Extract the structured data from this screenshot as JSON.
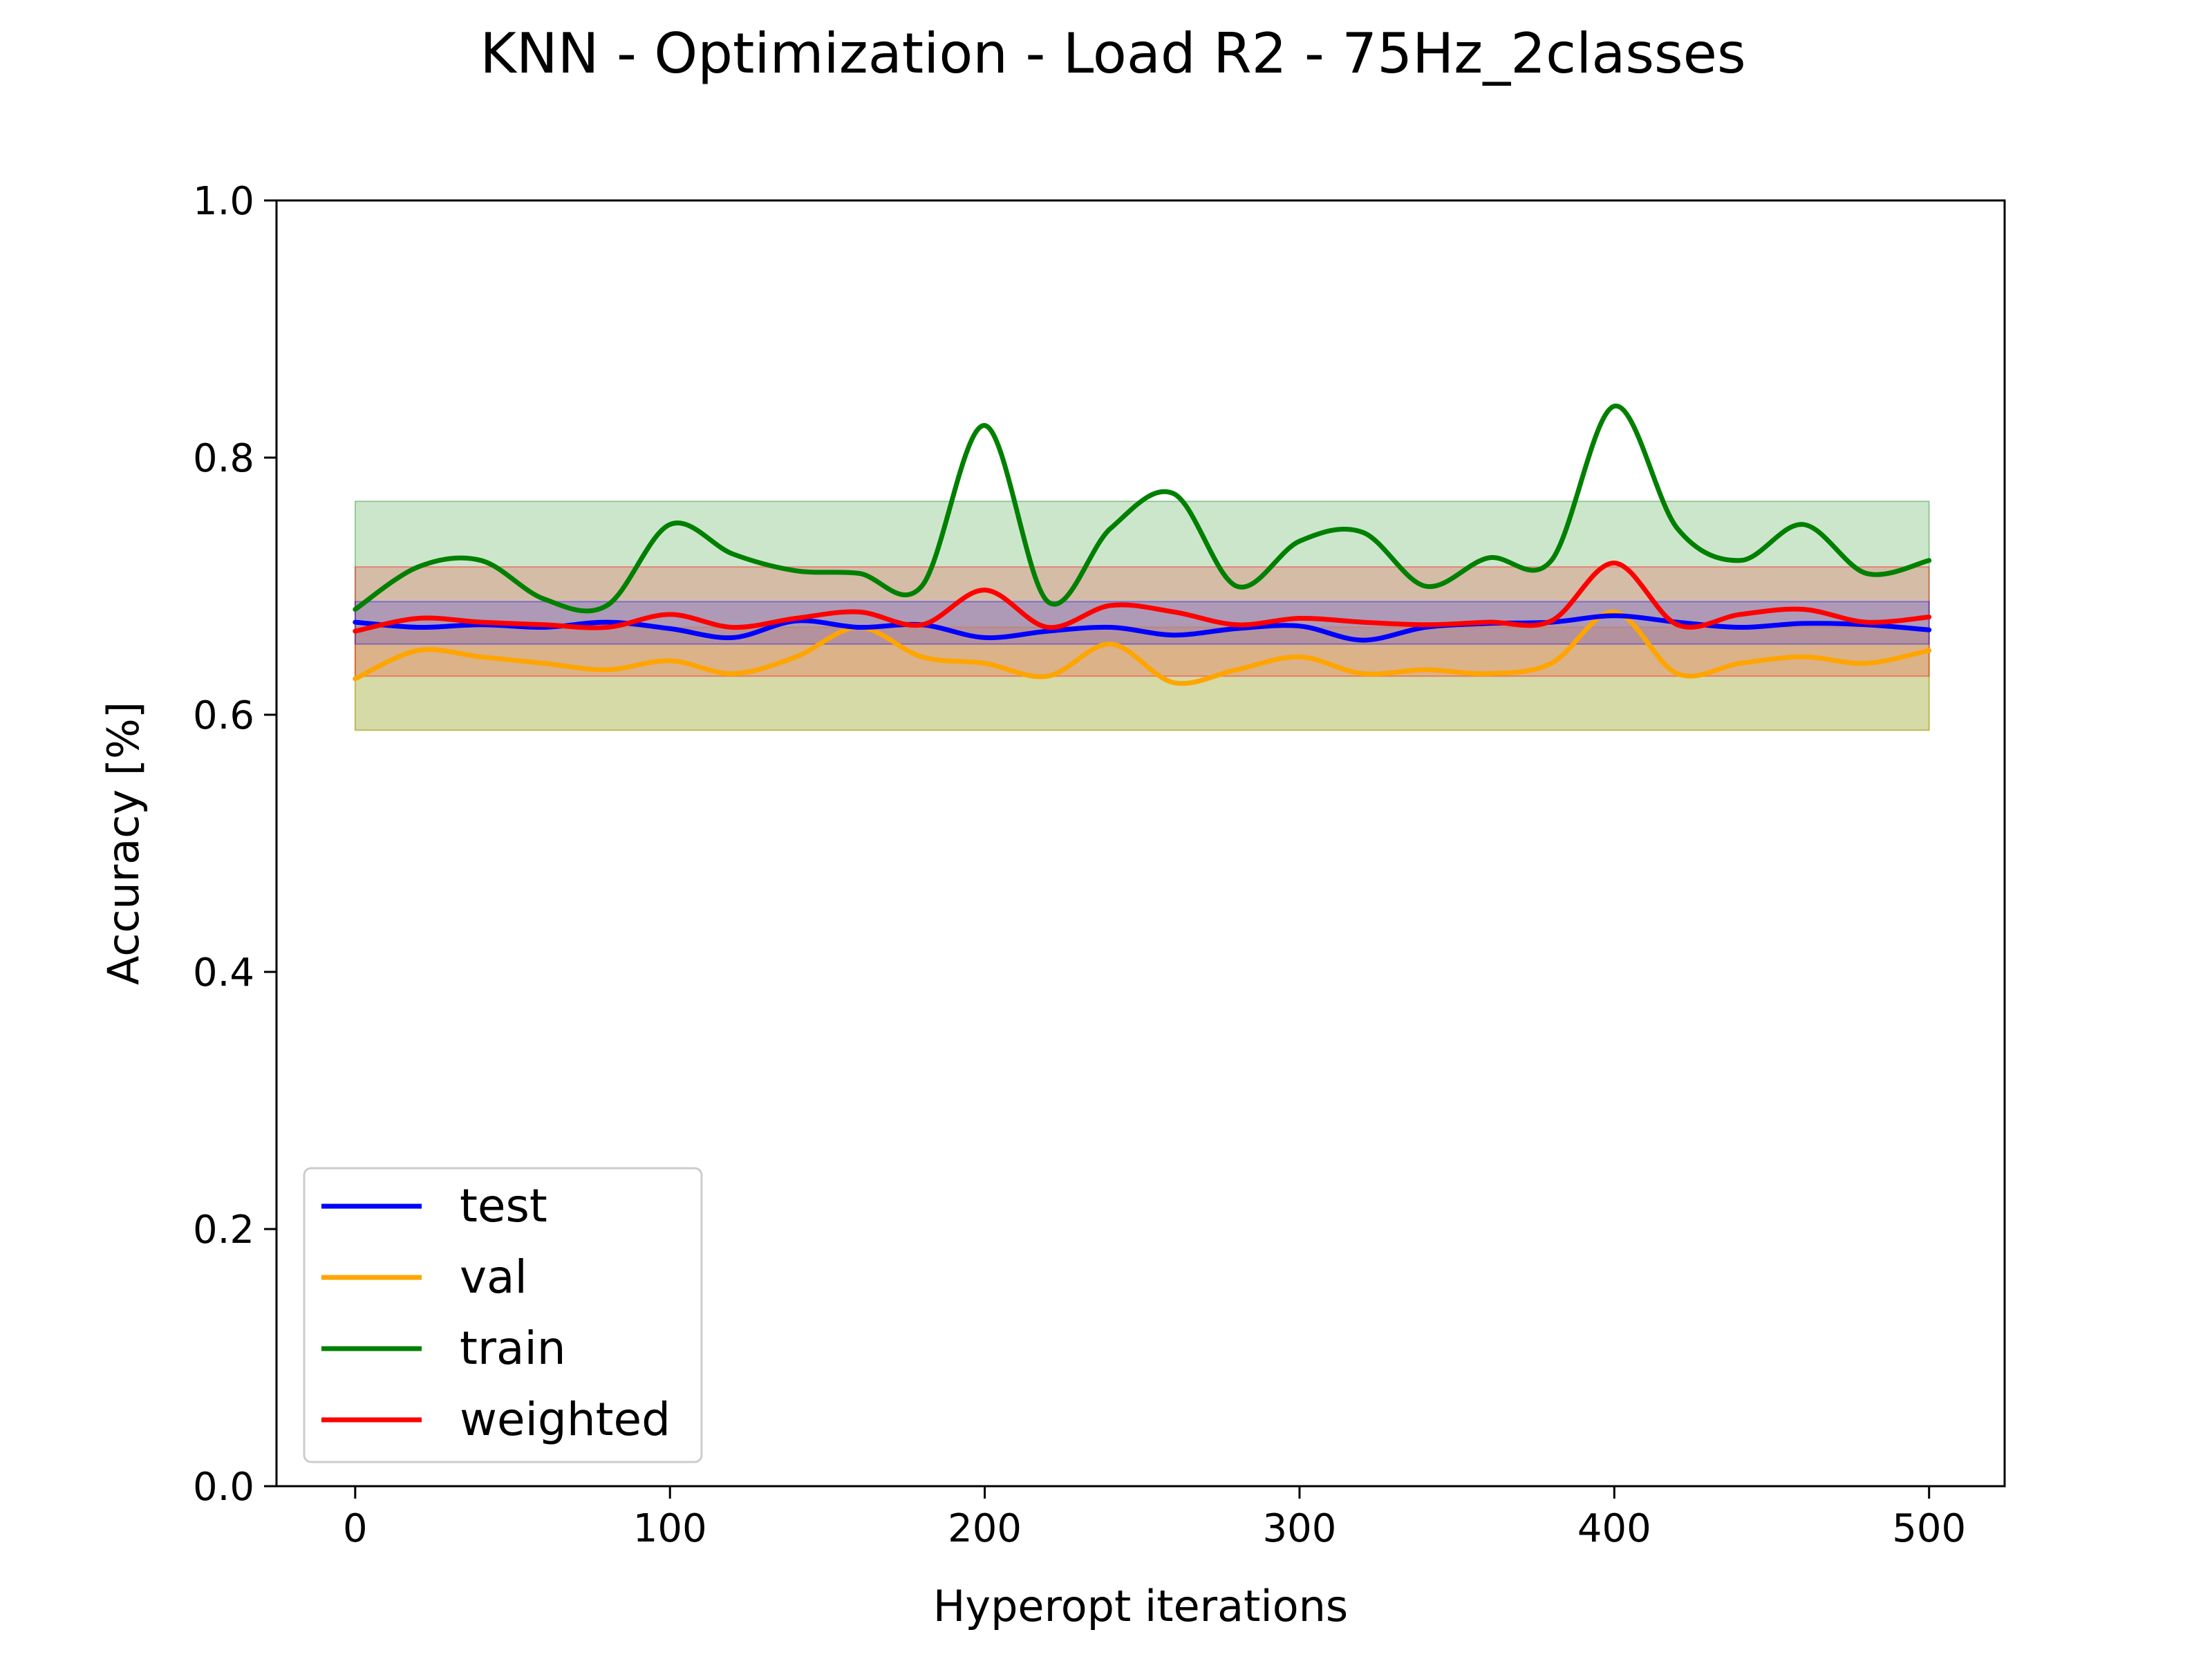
{
  "chart_data": {
    "type": "line",
    "title": "KNN - Optimization - Load R2 - 75Hz_2classes",
    "xlabel": "Hyperopt iterations",
    "ylabel": "Accuracy [%]",
    "xlim": [
      -25,
      524
    ],
    "ylim": [
      0.0,
      1.0
    ],
    "xticks": [
      "0",
      "100",
      "200",
      "300",
      "400",
      "500"
    ],
    "yticks": [
      "0.0",
      "0.2",
      "0.4",
      "0.6",
      "0.8",
      "1.0"
    ],
    "grid": false,
    "legend_position": "lower-left",
    "x": [
      0,
      20,
      40,
      60,
      80,
      100,
      120,
      140,
      160,
      180,
      200,
      220,
      240,
      260,
      280,
      300,
      320,
      340,
      360,
      380,
      400,
      420,
      440,
      460,
      480,
      500
    ],
    "series": [
      {
        "name": "test",
        "color": "#0000ff",
        "values": [
          0.672,
          0.668,
          0.67,
          0.668,
          0.672,
          0.667,
          0.66,
          0.673,
          0.668,
          0.67,
          0.66,
          0.665,
          0.668,
          0.662,
          0.667,
          0.669,
          0.658,
          0.668,
          0.671,
          0.672,
          0.677,
          0.672,
          0.668,
          0.671,
          0.67,
          0.666
        ],
        "band": [
          0.655,
          0.688
        ]
      },
      {
        "name": "val",
        "color": "#ffa500",
        "values": [
          0.628,
          0.65,
          0.645,
          0.64,
          0.635,
          0.642,
          0.632,
          0.645,
          0.668,
          0.645,
          0.64,
          0.63,
          0.655,
          0.625,
          0.635,
          0.645,
          0.632,
          0.635,
          0.632,
          0.64,
          0.68,
          0.632,
          0.64,
          0.645,
          0.64,
          0.65
        ],
        "band": [
          0.588,
          0.668
        ]
      },
      {
        "name": "train",
        "color": "#008000",
        "values": [
          0.682,
          0.715,
          0.72,
          0.69,
          0.685,
          0.748,
          0.725,
          0.712,
          0.71,
          0.7,
          0.825,
          0.688,
          0.745,
          0.772,
          0.7,
          0.735,
          0.742,
          0.7,
          0.722,
          0.72,
          0.84,
          0.745,
          0.72,
          0.748,
          0.71,
          0.72
        ],
        "band": [
          0.588,
          0.766
        ]
      },
      {
        "name": "weighted",
        "color": "#ff0000",
        "values": [
          0.665,
          0.675,
          0.672,
          0.67,
          0.668,
          0.678,
          0.668,
          0.675,
          0.68,
          0.67,
          0.697,
          0.668,
          0.685,
          0.68,
          0.67,
          0.675,
          0.672,
          0.67,
          0.672,
          0.673,
          0.718,
          0.67,
          0.678,
          0.682,
          0.672,
          0.676
        ],
        "band": [
          0.63,
          0.715
        ]
      }
    ]
  }
}
